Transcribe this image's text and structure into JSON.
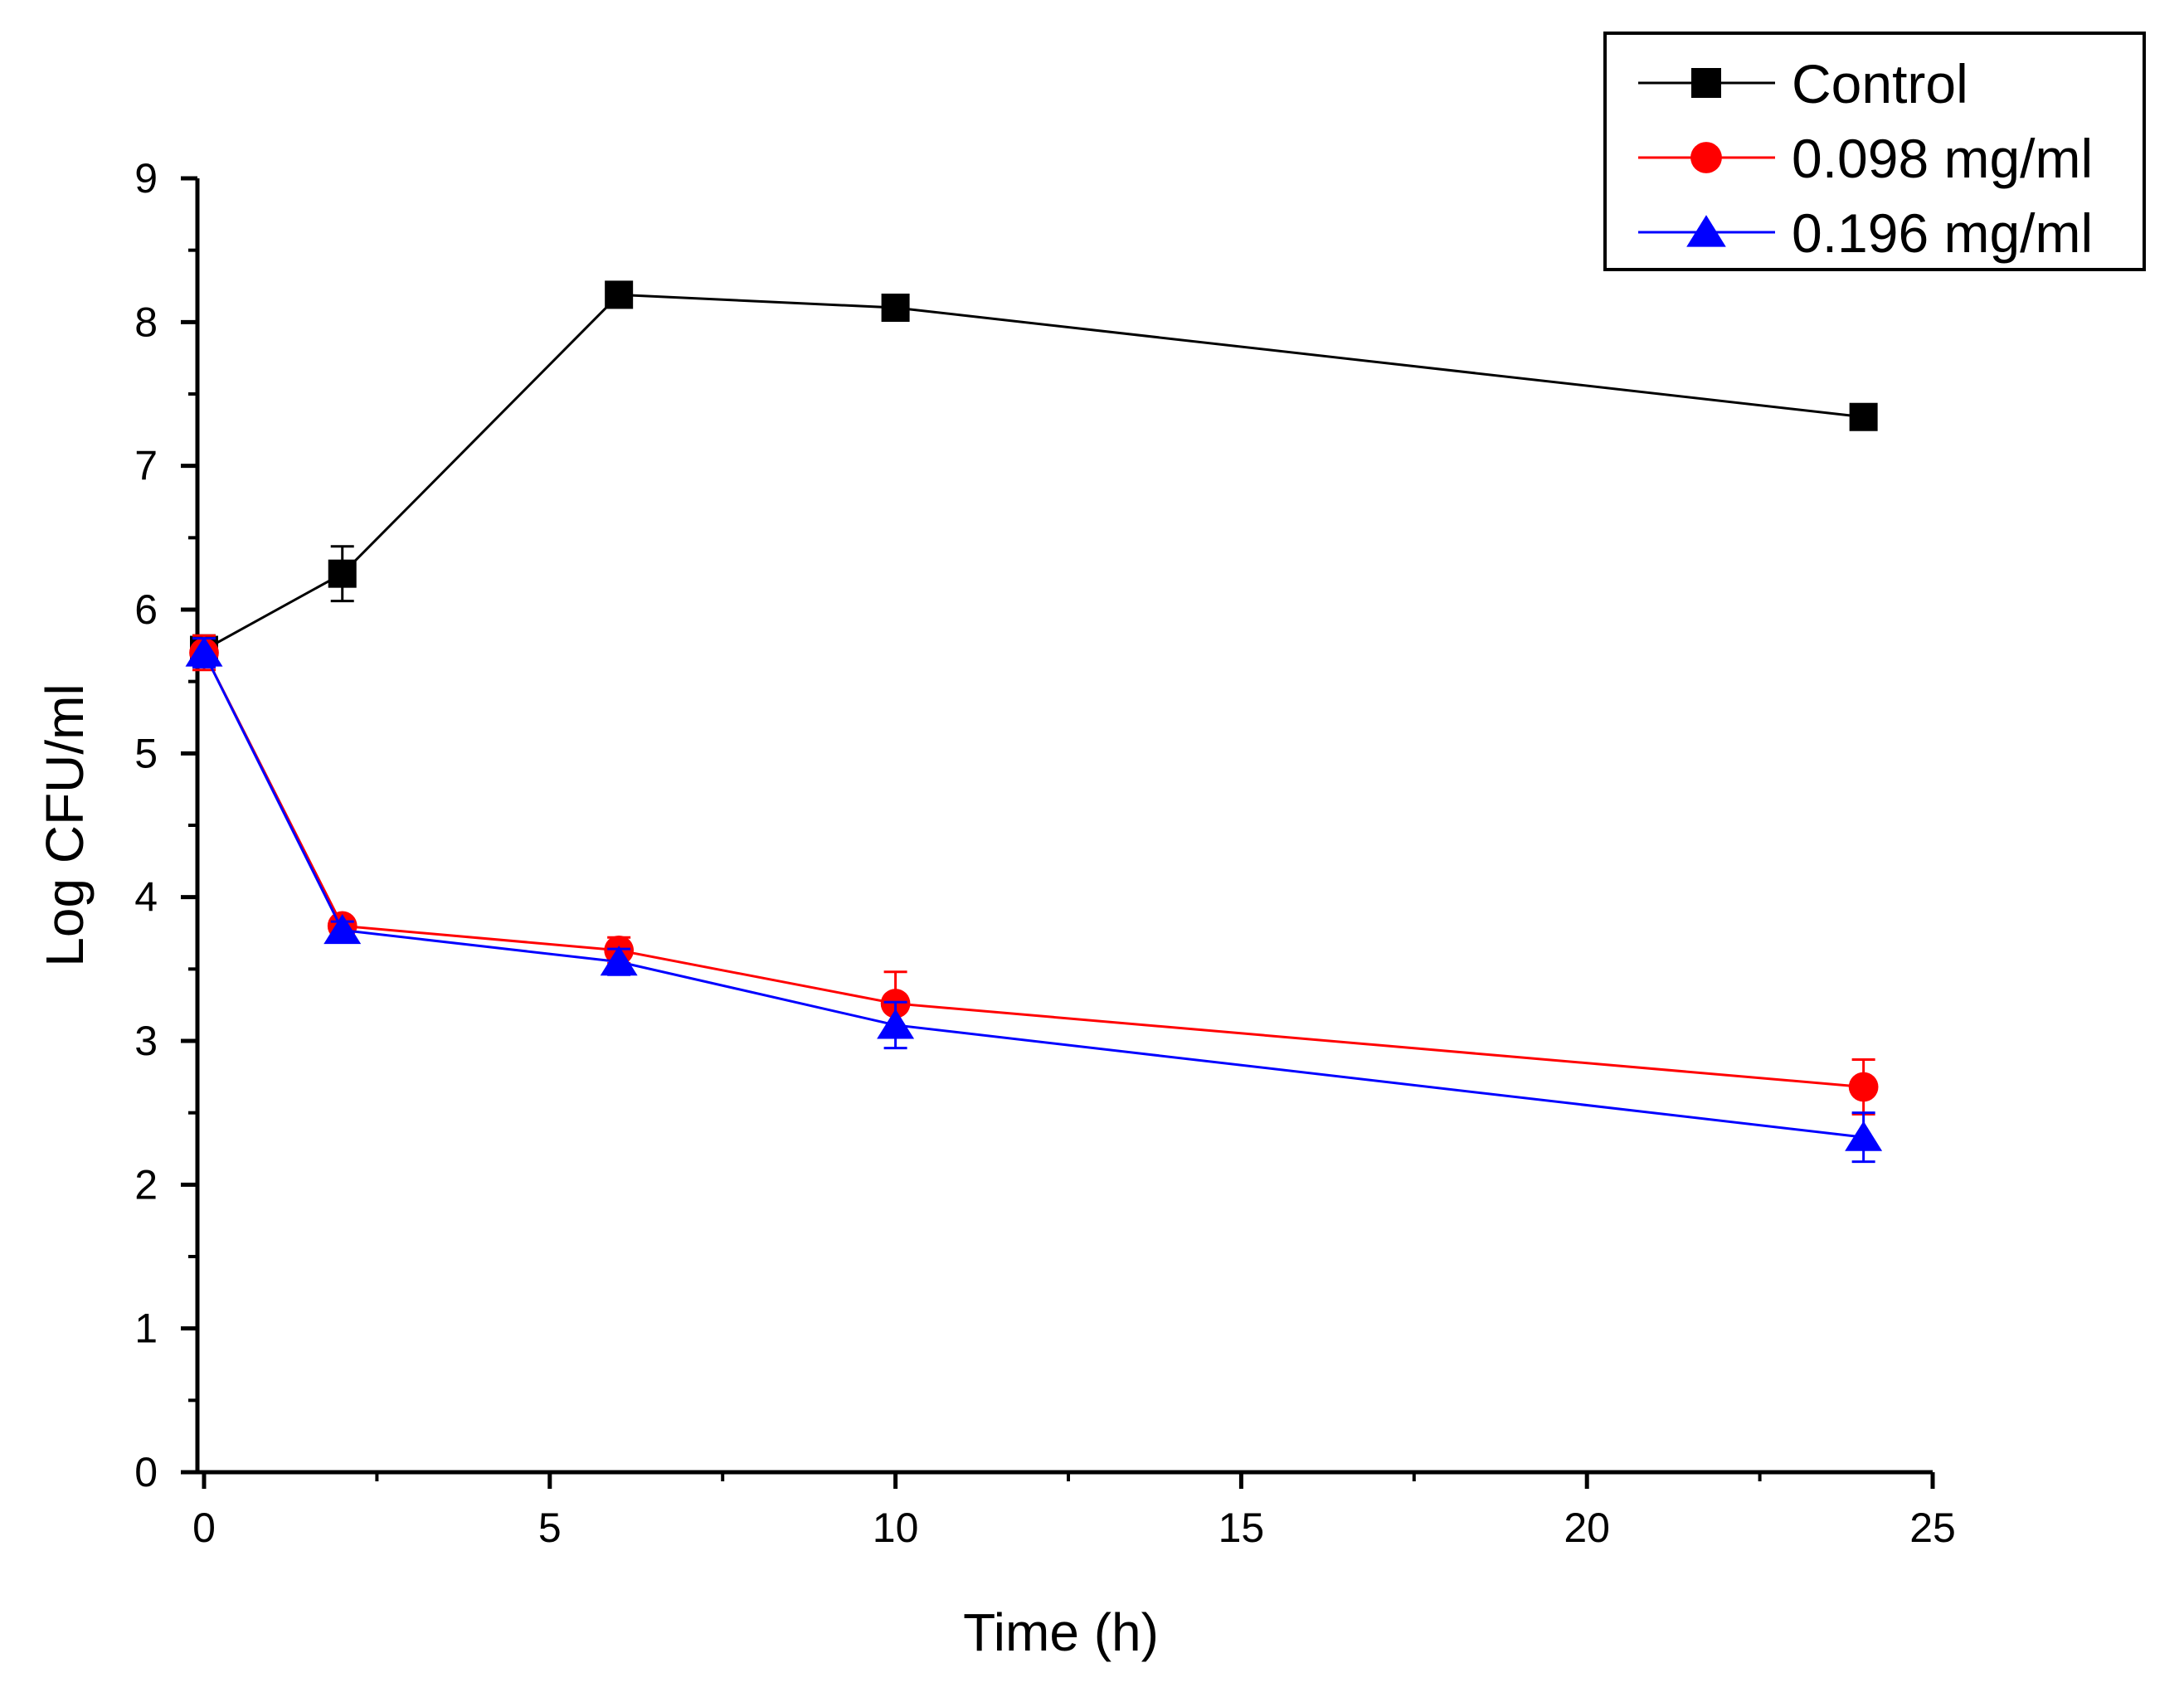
{
  "chart_data": {
    "type": "line",
    "title": "",
    "xlabel": "Time (h)",
    "ylabel": "Log CFU/ml",
    "xlim": [
      0,
      25
    ],
    "ylim": [
      0,
      9
    ],
    "x_ticks": [
      0,
      5,
      10,
      15,
      20,
      25
    ],
    "y_ticks": [
      0,
      1,
      2,
      3,
      4,
      5,
      6,
      7,
      8,
      9
    ],
    "grid": false,
    "legend_position": "top-right",
    "series": [
      {
        "name": "Control",
        "color": "#000000",
        "marker": "square",
        "x": [
          0,
          2,
          6,
          10,
          24
        ],
        "y": [
          5.72,
          6.25,
          8.19,
          8.1,
          7.34
        ],
        "error": [
          0.1,
          0.19,
          0.03,
          0.04,
          0.03
        ]
      },
      {
        "name": "0.098 mg/ml",
        "color": "#ff0000",
        "marker": "circle",
        "x": [
          0,
          2,
          6,
          10,
          24
        ],
        "y": [
          5.7,
          3.8,
          3.63,
          3.26,
          2.68
        ],
        "error": [
          0.12,
          0.04,
          0.09,
          0.22,
          0.19
        ]
      },
      {
        "name": "0.196 mg/ml",
        "color": "#0000ff",
        "marker": "triangle",
        "x": [
          0,
          2,
          6,
          10,
          24
        ],
        "y": [
          5.7,
          3.77,
          3.55,
          3.11,
          2.33
        ],
        "error": [
          0.1,
          0.06,
          0.09,
          0.16,
          0.17
        ]
      }
    ]
  }
}
